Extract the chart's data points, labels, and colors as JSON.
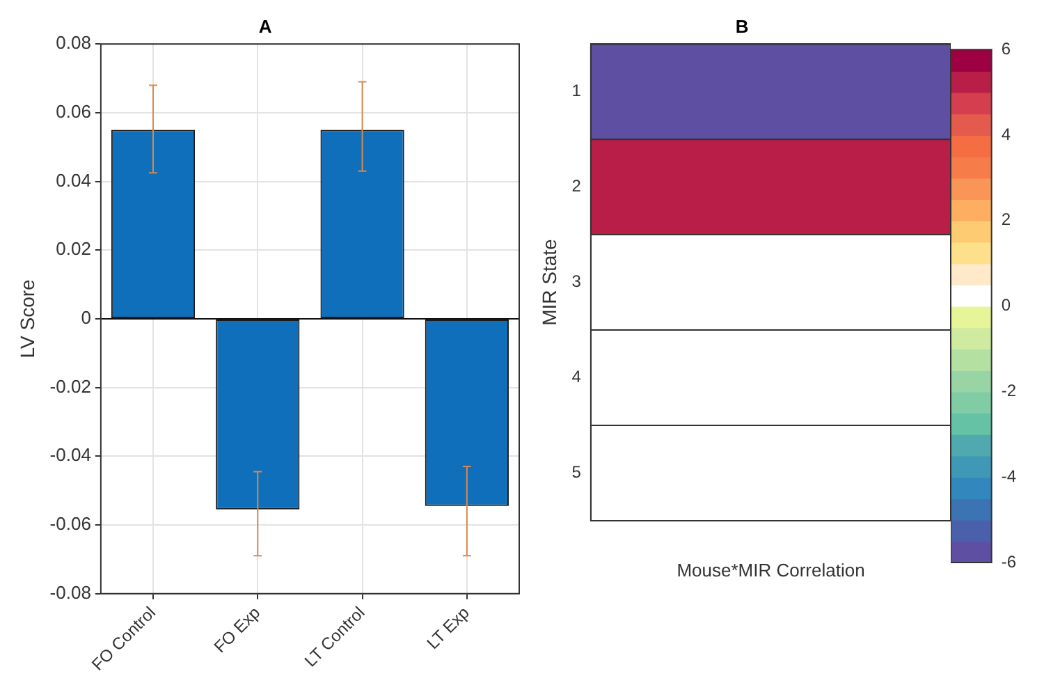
{
  "chart_data": [
    {
      "type": "bar",
      "title": "A",
      "ylabel": "LV Score",
      "categories": [
        "FO Control",
        "FO Exp",
        "LT Control",
        "LT Exp"
      ],
      "series": [
        {
          "color": "#0f6fba",
          "values": [
            0.055,
            -0.0555,
            0.055,
            -0.0545
          ],
          "errors": [
            [
              0.0425,
              0.068
            ],
            [
              -0.069,
              -0.0445
            ],
            [
              0.043,
              0.069
            ],
            [
              -0.069,
              -0.043
            ]
          ]
        }
      ],
      "ylim": [
        -0.08,
        0.08
      ],
      "yticks": [
        -0.08,
        -0.06,
        -0.04,
        -0.02,
        0,
        0.02,
        0.04,
        0.06,
        0.08
      ],
      "grid": true
    },
    {
      "type": "heatmap",
      "title": "B",
      "xlabel": "Mouse*MIR Correlation",
      "ylabel": "MIR State",
      "categories": [
        null
      ],
      "y_categories": [
        "1",
        "2",
        "3",
        "4",
        "5"
      ],
      "cells": [
        [
          -6
        ],
        [
          5.2
        ],
        [
          0
        ],
        [
          0
        ],
        [
          0
        ]
      ],
      "clim": [
        -6,
        6
      ],
      "cticks": [
        -6,
        -4,
        -2,
        0,
        2,
        4,
        6
      ]
    }
  ]
}
